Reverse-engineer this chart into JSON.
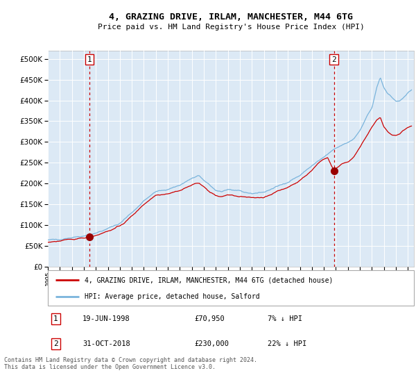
{
  "title": "4, GRAZING DRIVE, IRLAM, MANCHESTER, M44 6TG",
  "subtitle": "Price paid vs. HM Land Registry's House Price Index (HPI)",
  "ylabel_vals": [
    0,
    50000,
    100000,
    150000,
    200000,
    250000,
    300000,
    350000,
    400000,
    450000,
    500000
  ],
  "ylim": [
    0,
    520000
  ],
  "xlim_start": 1995.0,
  "xlim_end": 2025.5,
  "fig_bg_color": "#ffffff",
  "plot_bg_color": "#dce9f5",
  "grid_color": "#ffffff",
  "hpi_line_color": "#7ab4dc",
  "price_line_color": "#cc0000",
  "marker_color": "#990000",
  "dashed_line_color": "#cc0000",
  "legend_label_red": "4, GRAZING DRIVE, IRLAM, MANCHESTER, M44 6TG (detached house)",
  "legend_label_blue": "HPI: Average price, detached house, Salford",
  "sale1_date": 1998.46,
  "sale1_price": 70950,
  "sale2_date": 2018.83,
  "sale2_price": 230000,
  "sale1_text": "19-JUN-1998",
  "sale1_amount": "£70,950",
  "sale1_pct": "7% ↓ HPI",
  "sale2_text": "31-OCT-2018",
  "sale2_amount": "£230,000",
  "sale2_pct": "22% ↓ HPI",
  "footnote": "Contains HM Land Registry data © Crown copyright and database right 2024.\nThis data is licensed under the Open Government Licence v3.0."
}
